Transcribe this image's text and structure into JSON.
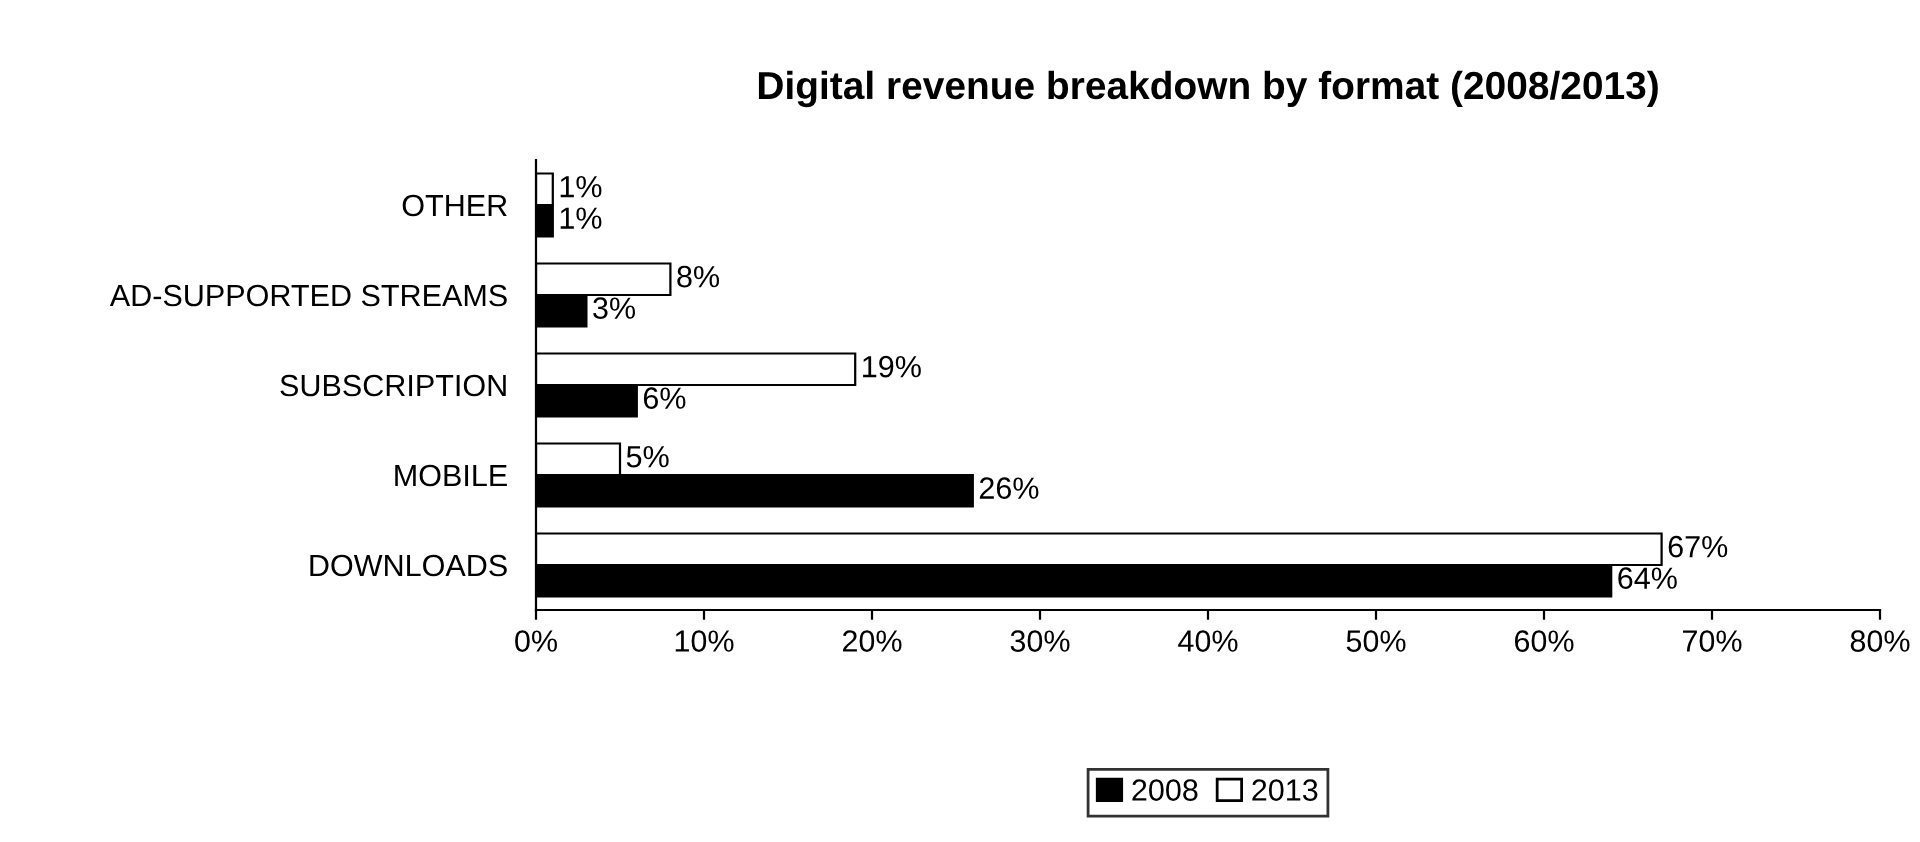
{
  "chart_data": {
    "type": "bar",
    "orientation": "horizontal",
    "title": "Digital revenue breakdown by format (2008/2013)",
    "categories": [
      "OTHER",
      "AD-SUPPORTED STREAMS",
      "SUBSCRIPTION",
      "MOBILE",
      "DOWNLOADS"
    ],
    "series": [
      {
        "name": "2013",
        "color": "#ffffff",
        "values": [
          1,
          8,
          19,
          5,
          67
        ],
        "value_labels": [
          "1%",
          "8%",
          "19%",
          "5%",
          "67%"
        ]
      },
      {
        "name": "2008",
        "color": "#000000",
        "values": [
          1,
          3,
          6,
          26,
          64
        ],
        "value_labels": [
          "1%",
          "3%",
          "6%",
          "26%",
          "64%"
        ]
      }
    ],
    "xlim": [
      0,
      80
    ],
    "xticks": [
      {
        "value": 0,
        "label": "0%"
      },
      {
        "value": 10,
        "label": "10%"
      },
      {
        "value": 20,
        "label": "20%"
      },
      {
        "value": 30,
        "label": "30%"
      },
      {
        "value": 40,
        "label": "40%"
      },
      {
        "value": 50,
        "label": "50%"
      },
      {
        "value": 60,
        "label": "60%"
      },
      {
        "value": 70,
        "label": "70%"
      },
      {
        "value": 80,
        "label": "80%"
      }
    ],
    "legend": "bottom",
    "grid": false
  }
}
